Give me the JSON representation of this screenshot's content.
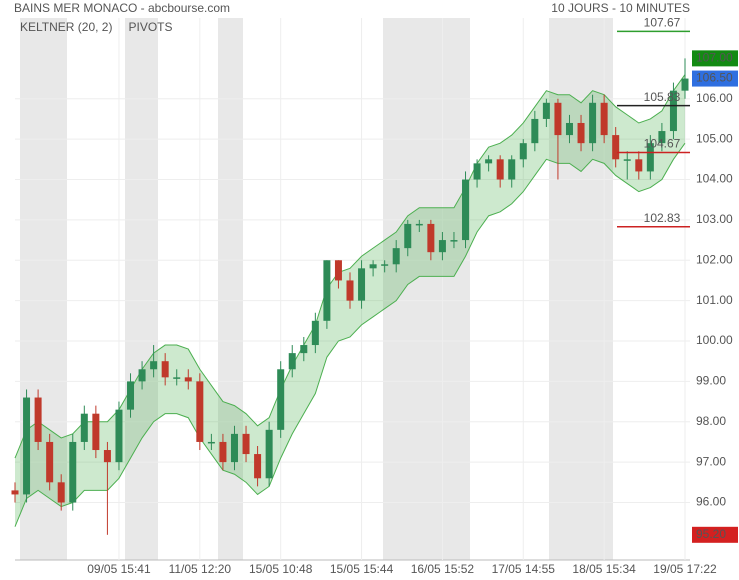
{
  "chart_data": {
    "type": "candlestick",
    "title": "BAINS MER MONACO - abcbourse.com",
    "subtitle": "10 JOURS - 10 MINUTES",
    "indicators": [
      {
        "name": "KELTNER (20, 2)",
        "color": "#3c9a3c"
      },
      {
        "name": "PIVOTS",
        "color": "#333333"
      }
    ],
    "categories": [
      null,
      null,
      null,
      null,
      null,
      null,
      null,
      null,
      null,
      "09/05 15:41",
      null,
      null,
      null,
      null,
      null,
      null,
      "11/05 12:20",
      null,
      null,
      null,
      null,
      null,
      null,
      "15/05 10:48",
      null,
      null,
      null,
      null,
      null,
      null,
      "15/05 15:44",
      null,
      null,
      null,
      null,
      null,
      null,
      "16/05 15:52",
      null,
      null,
      null,
      null,
      null,
      null,
      "17/05 14:55",
      null,
      null,
      null,
      null,
      null,
      null,
      "18/05 15:34",
      null,
      null,
      null,
      null,
      null,
      null,
      "19/05 17:22"
    ],
    "open": [
      96.3,
      96.2,
      98.6,
      97.5,
      96.5,
      96.0,
      97.5,
      98.2,
      97.3,
      97.0,
      98.3,
      99.0,
      99.3,
      99.5,
      99.1,
      99.1,
      99.0,
      97.5,
      97.5,
      97.0,
      97.7,
      97.2,
      96.6,
      97.8,
      99.3,
      99.7,
      99.9,
      100.5,
      102.0,
      101.5,
      101.0,
      101.8,
      101.9,
      101.9,
      102.3,
      102.9,
      102.9,
      102.2,
      102.5,
      102.5,
      104.0,
      104.4,
      104.5,
      104.0,
      104.5,
      104.9,
      105.5,
      105.9,
      105.1,
      105.4,
      104.9,
      105.9,
      105.1,
      104.5,
      104.5,
      104.2,
      104.9,
      105.2,
      106.2
    ],
    "high": [
      96.5,
      98.8,
      98.8,
      97.7,
      96.7,
      97.7,
      98.4,
      98.4,
      97.5,
      98.5,
      99.2,
      99.5,
      99.9,
      99.7,
      99.3,
      99.3,
      99.2,
      97.7,
      97.7,
      97.9,
      97.9,
      97.4,
      98.0,
      99.5,
      99.9,
      100.1,
      100.7,
      102.0,
      102.0,
      101.7,
      102.0,
      102.0,
      102.0,
      102.5,
      103.0,
      103.0,
      103.0,
      102.7,
      102.7,
      104.2,
      104.5,
      104.6,
      104.6,
      104.6,
      105.0,
      105.7,
      106.0,
      106.0,
      105.6,
      105.6,
      106.1,
      106.1,
      105.3,
      104.7,
      104.7,
      105.1,
      105.4,
      106.4,
      107.0
    ],
    "low": [
      96.0,
      96.0,
      97.3,
      96.3,
      95.8,
      95.8,
      97.3,
      97.1,
      95.2,
      96.8,
      98.1,
      98.8,
      99.1,
      98.9,
      98.9,
      98.8,
      97.3,
      97.3,
      96.8,
      96.8,
      97.0,
      96.4,
      96.4,
      97.6,
      99.1,
      99.5,
      99.7,
      100.3,
      101.3,
      100.8,
      100.8,
      101.6,
      101.7,
      101.7,
      102.1,
      102.7,
      102.0,
      102.0,
      102.3,
      102.3,
      103.8,
      104.2,
      103.8,
      103.8,
      104.3,
      104.7,
      105.3,
      104.0,
      104.9,
      104.7,
      104.7,
      104.9,
      104.3,
      104.0,
      104.0,
      104.0,
      104.7,
      105.0,
      106.0
    ],
    "close": [
      96.2,
      98.6,
      97.5,
      96.5,
      96.0,
      97.5,
      98.2,
      97.3,
      97.0,
      98.3,
      99.0,
      99.3,
      99.5,
      99.1,
      99.1,
      99.0,
      97.5,
      97.5,
      97.0,
      97.7,
      97.2,
      96.6,
      97.8,
      99.3,
      99.7,
      99.9,
      100.5,
      102.0,
      101.5,
      101.0,
      101.8,
      101.9,
      101.9,
      102.3,
      102.9,
      102.9,
      102.2,
      102.5,
      102.5,
      104.0,
      104.4,
      104.5,
      104.0,
      104.5,
      104.9,
      105.5,
      105.9,
      105.1,
      105.4,
      104.9,
      105.9,
      105.1,
      104.5,
      104.5,
      104.2,
      104.9,
      105.2,
      106.2,
      106.5
    ],
    "upper": [
      97.1,
      97.8,
      98.0,
      97.8,
      97.6,
      97.7,
      98.0,
      98.0,
      98.0,
      98.3,
      98.8,
      99.3,
      99.7,
      99.9,
      99.9,
      99.8,
      99.3,
      98.9,
      98.5,
      98.4,
      98.2,
      97.9,
      98.1,
      98.8,
      99.4,
      99.9,
      100.4,
      101.3,
      101.7,
      101.8,
      102.1,
      102.3,
      102.5,
      102.7,
      103.1,
      103.3,
      103.3,
      103.3,
      103.3,
      103.8,
      104.4,
      104.8,
      104.9,
      105.1,
      105.4,
      105.8,
      106.2,
      106.1,
      106.1,
      105.9,
      106.2,
      106.1,
      105.8,
      105.6,
      105.4,
      105.5,
      105.7,
      106.2,
      106.6
    ],
    "lower": [
      95.4,
      96.1,
      96.3,
      96.1,
      95.9,
      96.0,
      96.3,
      96.3,
      96.3,
      96.6,
      97.1,
      97.6,
      98.0,
      98.2,
      98.2,
      98.1,
      97.6,
      97.2,
      96.8,
      96.7,
      96.5,
      96.2,
      96.4,
      97.1,
      97.7,
      98.2,
      98.7,
      99.6,
      100.0,
      100.1,
      100.4,
      100.6,
      100.8,
      101.0,
      101.4,
      101.6,
      101.6,
      101.6,
      101.6,
      102.1,
      102.7,
      103.1,
      103.2,
      103.4,
      103.7,
      104.1,
      104.5,
      104.4,
      104.4,
      104.2,
      104.5,
      104.4,
      104.1,
      103.9,
      103.7,
      103.8,
      104.0,
      104.5,
      104.9
    ],
    "up_color": "#2e8b57",
    "down_color": "#c0392b",
    "band_color": "#4caf50",
    "pivots": [
      {
        "value": 107.67,
        "color": "#2e9e2e"
      },
      {
        "value": 105.83,
        "color": "#222222"
      },
      {
        "value": 104.67,
        "color": "#cc2222"
      },
      {
        "value": 102.83,
        "color": "#cc2222"
      }
    ],
    "price_tags": [
      {
        "value": 107,
        "label": "107.00",
        "color": "#138a13"
      },
      {
        "value": 106.5,
        "label": "106.50",
        "color": "#2f6fe0"
      },
      {
        "value": 95.2,
        "label": "95.20",
        "color": "#d42020"
      }
    ],
    "ylim": [
      94.7,
      108.0
    ],
    "yticks": [
      {
        "value": 96,
        "label": "96.00"
      },
      {
        "value": 97,
        "label": "97.00"
      },
      {
        "value": 98,
        "label": "98.00"
      },
      {
        "value": 99,
        "label": "99.00"
      },
      {
        "value": 100,
        "label": "100.00"
      },
      {
        "value": 101,
        "label": "101.00"
      },
      {
        "value": 102,
        "label": "102.00"
      },
      {
        "value": 103,
        "label": "103.00"
      },
      {
        "value": 104,
        "label": "104.00"
      },
      {
        "value": 105,
        "label": "105.00"
      },
      {
        "value": 106,
        "label": "106.00"
      }
    ],
    "grid": true
  }
}
